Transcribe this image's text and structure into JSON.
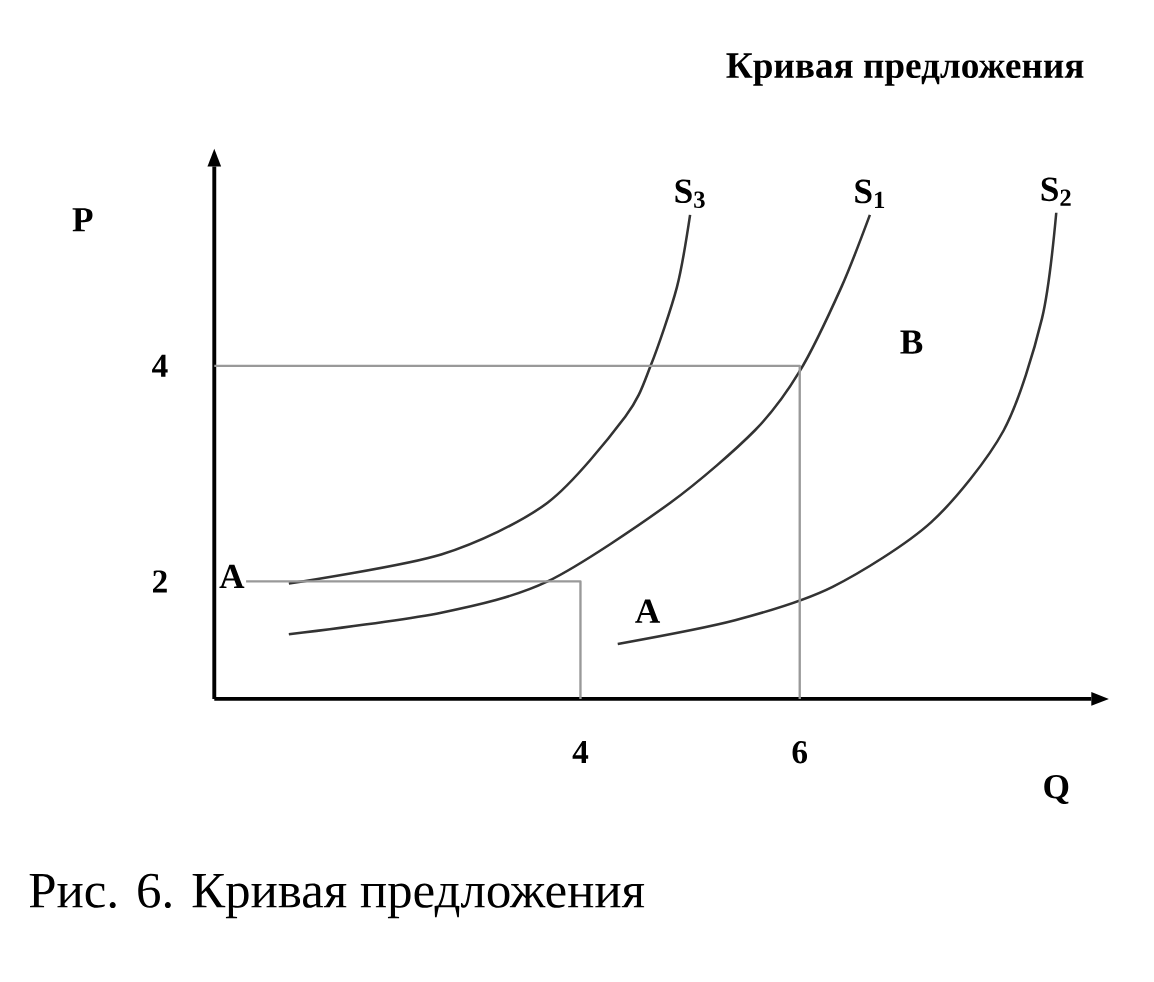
{
  "chart_data": {
    "type": "line",
    "title": "Кривая предложения",
    "xlabel": "Q",
    "ylabel": "P",
    "xlim": [
      0.66,
      8.66
    ],
    "ylim": [
      0.91,
      5.85
    ],
    "xticks": [
      4,
      6
    ],
    "yticks": [
      2,
      4
    ],
    "series": [
      {
        "name": "S$_{3}$",
        "color": "#333333",
        "x": [
          1.34,
          2.73,
          3.7,
          4.41,
          4.64,
          4.88,
          5.0
        ],
        "values": [
          1.98,
          2.25,
          2.73,
          3.53,
          4.0,
          4.73,
          5.4
        ]
      },
      {
        "name": "S$_{1}$",
        "color": "#333333",
        "x": [
          1.34,
          2.73,
          3.7,
          4.82,
          5.59,
          6.0,
          6.38,
          6.64
        ],
        "values": [
          1.51,
          1.71,
          2.0,
          2.73,
          3.4,
          3.95,
          4.73,
          5.4
        ]
      },
      {
        "name": "S$_{2}$",
        "color": "#333333",
        "x": [
          4.34,
          5.41,
          6.3,
          7.2,
          7.86,
          8.21,
          8.34
        ],
        "values": [
          1.42,
          1.64,
          1.95,
          2.55,
          3.4,
          4.44,
          5.42
        ]
      },
      {
        "color": "#999999",
        "x": [
          0.95,
          4.0,
          4.0
        ],
        "values": [
          2.0,
          2.0,
          0.91
        ]
      },
      {
        "color": "#999999",
        "x": [
          0.66,
          6.0,
          6.0
        ],
        "values": [
          4.0,
          4.0,
          0.91
        ]
      }
    ],
    "annotations": [
      "A",
      "A",
      "B",
      "Рис. 6. Кривая предложения"
    ]
  }
}
